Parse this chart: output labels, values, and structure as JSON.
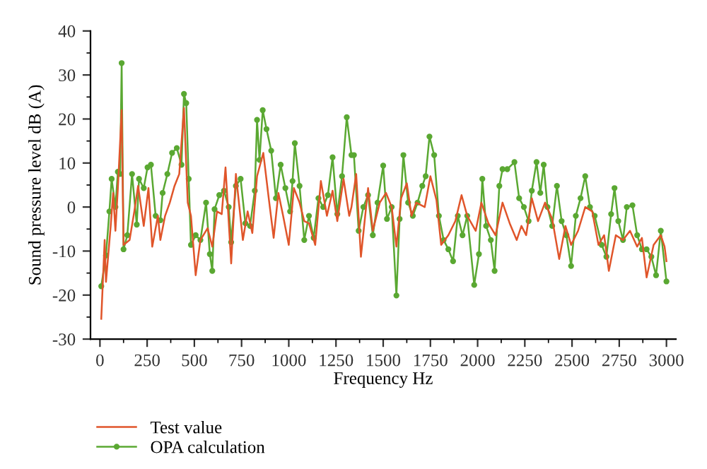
{
  "chart_data": {
    "type": "line",
    "xlabel": "Frequency Hz",
    "ylabel": "Sound pressure level dB (A)",
    "xlim": [
      -50,
      3050
    ],
    "ylim": [
      -30,
      40
    ],
    "xticks": [
      0,
      250,
      500,
      750,
      1000,
      1250,
      1500,
      1750,
      2000,
      2250,
      2500,
      2750,
      3000
    ],
    "yticks": [
      -30,
      -20,
      -10,
      0,
      10,
      20,
      30,
      40
    ],
    "grid": false,
    "legend": "bottom left",
    "line_style": "solid",
    "series": [
      {
        "name": "Test value",
        "color": "#e0552a",
        "marker": "none",
        "x": [
          7,
          25,
          32,
          57,
          70,
          82,
          95,
          115,
          125,
          157,
          182,
          202,
          232,
          257,
          277,
          307,
          320,
          345,
          370,
          395,
          420,
          445,
          465,
          482,
          507,
          532,
          570,
          595,
          620,
          645,
          665,
          695,
          720,
          757,
          782,
          807,
          832,
          865,
          895,
          920,
          945,
          970,
          1000,
          1027,
          1057,
          1082,
          1107,
          1140,
          1170,
          1202,
          1232,
          1257,
          1290,
          1320,
          1332,
          1357,
          1382,
          1420,
          1445,
          1482,
          1515,
          1545,
          1570,
          1595,
          1625,
          1650,
          1675,
          1720,
          1750,
          1782,
          1807,
          1845,
          1882,
          1915,
          1945,
          1990,
          2020,
          2057,
          2095,
          2132,
          2170,
          2207,
          2232,
          2257,
          2287,
          2320,
          2357,
          2395,
          2432,
          2465,
          2495,
          2532,
          2570,
          2607,
          2640,
          2670,
          2695,
          2732,
          2770,
          2807,
          2845,
          2870,
          2895,
          2932,
          2970,
          2990,
          3000
        ],
        "values": [
          -25.4,
          -7.5,
          -17,
          -4.3,
          3.2,
          -5.4,
          4.3,
          22,
          -8.6,
          -7.5,
          -1,
          4.8,
          -4.3,
          4.3,
          -9,
          -2,
          -7.5,
          -2,
          1,
          4.8,
          7.5,
          22.5,
          1,
          -2,
          -15.5,
          -7.5,
          -4.8,
          -9,
          -1,
          -1.6,
          9,
          -12.8,
          7.5,
          -7.5,
          -1,
          -5.9,
          7,
          12.3,
          1.6,
          -7,
          3.2,
          -2,
          -8.6,
          4.3,
          1,
          -3.2,
          -3.7,
          -8.6,
          5.9,
          -2,
          3.7,
          -3.2,
          6.4,
          -2,
          0,
          7.5,
          -11.3,
          4.3,
          -5.4,
          1,
          3.2,
          0,
          -9,
          2,
          5.4,
          -2,
          1,
          0,
          7,
          1.6,
          -8.6,
          -6.4,
          -3.2,
          2.7,
          -2,
          -5.4,
          1,
          -3.7,
          -6.4,
          1,
          -3.7,
          -7.5,
          -4.3,
          -6.4,
          2,
          -3.2,
          1,
          -2.7,
          -11.8,
          -4.3,
          -8.6,
          -5.4,
          0,
          -1,
          -8.6,
          -6.4,
          -14.5,
          -6.4,
          -7.5,
          -5.4,
          -9,
          -7,
          -16,
          -8.6,
          -6.4,
          -9,
          -12.3
        ]
      },
      {
        "name": "OPA calculation",
        "color": "#5aa832",
        "marker": "circle",
        "x": [
          7,
          32,
          50,
          62,
          82,
          95,
          107,
          115,
          125,
          145,
          170,
          195,
          207,
          232,
          252,
          270,
          295,
          320,
          332,
          357,
          382,
          407,
          432,
          445,
          457,
          470,
          482,
          507,
          532,
          562,
          582,
          595,
          607,
          632,
          657,
          682,
          695,
          720,
          745,
          770,
          795,
          820,
          832,
          845,
          862,
          882,
          907,
          932,
          957,
          982,
          1007,
          1020,
          1032,
          1057,
          1082,
          1107,
          1132,
          1157,
          1182,
          1207,
          1232,
          1257,
          1282,
          1307,
          1332,
          1345,
          1370,
          1395,
          1420,
          1445,
          1470,
          1500,
          1520,
          1545,
          1570,
          1587,
          1607,
          1632,
          1657,
          1682,
          1707,
          1725,
          1745,
          1770,
          1795,
          1820,
          1845,
          1870,
          1895,
          1920,
          1945,
          1982,
          2007,
          2025,
          2045,
          2070,
          2090,
          2115,
          2132,
          2157,
          2195,
          2220,
          2245,
          2270,
          2287,
          2312,
          2332,
          2350,
          2370,
          2395,
          2420,
          2445,
          2470,
          2495,
          2520,
          2545,
          2570,
          2595,
          2620,
          2657,
          2682,
          2707,
          2725,
          2745,
          2770,
          2790,
          2820,
          2845,
          2870,
          2895,
          2920,
          2945,
          2970,
          3000
        ],
        "values": [
          -18,
          -11,
          -1,
          6.4,
          0,
          8,
          7.5,
          32.7,
          -9.6,
          -6.4,
          7.5,
          -4,
          6.4,
          4.3,
          9,
          9.6,
          -2,
          -3,
          3.2,
          7.5,
          12.3,
          13.4,
          9.6,
          25.7,
          23.6,
          6.4,
          -8.6,
          -6.4,
          -7.5,
          1,
          -10.7,
          -14.5,
          -0.5,
          2.7,
          3.7,
          0,
          -8,
          4.8,
          6.4,
          -3.7,
          -4.3,
          3.7,
          19.8,
          10.7,
          22,
          17.7,
          12.8,
          2,
          9.6,
          4.3,
          -1,
          5.9,
          14.5,
          4.8,
          -7.5,
          -2,
          -7,
          2,
          0,
          2.7,
          11.3,
          -1.6,
          7,
          20.4,
          11.8,
          11.8,
          -5.4,
          0,
          2.7,
          -6.4,
          1,
          9.4,
          -2.7,
          0,
          -20.1,
          -2.7,
          11.8,
          1,
          -2,
          1,
          4.8,
          7,
          16,
          11.8,
          -2,
          -7.5,
          -9.6,
          -12.3,
          -2,
          -6.4,
          -2,
          -17.7,
          -10.7,
          6.4,
          -4.3,
          -7.5,
          -14.5,
          4.8,
          8.6,
          8.6,
          10.2,
          2,
          0,
          -3.2,
          3.7,
          10.2,
          3.2,
          9.6,
          0,
          -4.3,
          4.8,
          -3.2,
          -6.4,
          -13.4,
          -2,
          2,
          7,
          0,
          -2,
          -8.6,
          -11.3,
          -1.6,
          4.3,
          -3.2,
          -7.5,
          0,
          0.4,
          -6.4,
          -9.6,
          -9.6,
          -11.3,
          -15.5,
          -5.4,
          -16.9
        ]
      }
    ]
  }
}
